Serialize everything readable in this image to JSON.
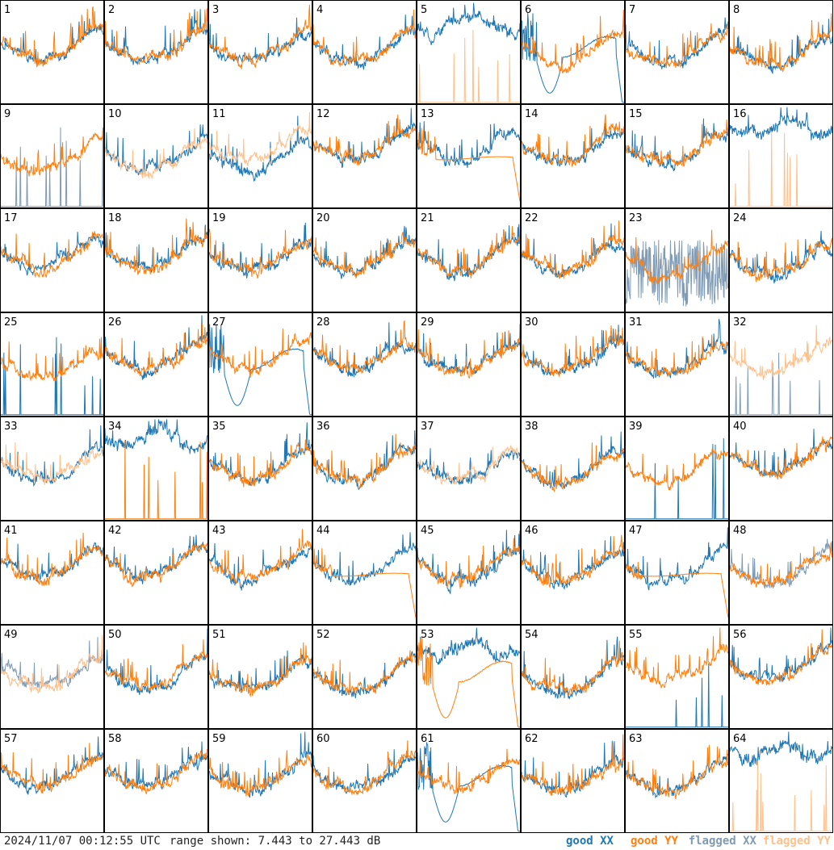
{
  "footer": {
    "timestamp": "2024/11/07 00:12:55 UTC",
    "range_text": "range shown: 7.443 to 27.443 dB",
    "legend": {
      "good_xx": "good XX",
      "good_yy": "good YY",
      "flagged_xx": "flagged XX",
      "flagged_yy": "flagged YY"
    }
  },
  "colors": {
    "good_xx": "#1f77b4",
    "good_yy": "#ff7f0e",
    "flagged_xx": "#7f9bb5",
    "flagged_yy": "#ffc08a",
    "border": "#000000"
  },
  "chart_data": {
    "type": "line",
    "grid": "8x8 small multiples",
    "ylim_db": [
      7.443,
      27.443
    ],
    "series_kinds": [
      "good XX",
      "good YY",
      "flagged XX",
      "flagged YY"
    ],
    "tiles": [
      {
        "id": "1",
        "xx": "good",
        "yy": "good",
        "xx_shape": "normal",
        "yy_shape": "normal"
      },
      {
        "id": "2",
        "xx": "good",
        "yy": "good",
        "xx_shape": "normal",
        "yy_shape": "normal"
      },
      {
        "id": "3",
        "xx": "good",
        "yy": "good",
        "xx_shape": "normal",
        "yy_shape": "normal"
      },
      {
        "id": "4",
        "xx": "good",
        "yy": "good",
        "xx_shape": "normal",
        "yy_shape": "normal"
      },
      {
        "id": "5",
        "xx": "good",
        "yy": "flagged",
        "xx_shape": "high",
        "yy_shape": "spiky"
      },
      {
        "id": "6",
        "xx": "good",
        "yy": "good",
        "xx_shape": "dip",
        "yy_shape": "normal"
      },
      {
        "id": "7",
        "xx": "good",
        "yy": "good",
        "xx_shape": "normal",
        "yy_shape": "normal"
      },
      {
        "id": "8",
        "xx": "good",
        "yy": "good",
        "xx_shape": "normal",
        "yy_shape": "normal"
      },
      {
        "id": "9",
        "xx": "flagged",
        "yy": "good",
        "xx_shape": "spiky",
        "yy_shape": "normal"
      },
      {
        "id": "10",
        "xx": "good",
        "yy": "flagged",
        "xx_shape": "normal",
        "yy_shape": "normal"
      },
      {
        "id": "11",
        "xx": "good",
        "yy": "flagged",
        "xx_shape": "normal",
        "yy_shape": "normal"
      },
      {
        "id": "12",
        "xx": "good",
        "yy": "good",
        "xx_shape": "normal",
        "yy_shape": "normal"
      },
      {
        "id": "13",
        "xx": "good",
        "yy": "good",
        "xx_shape": "normal",
        "yy_shape": "flat"
      },
      {
        "id": "14",
        "xx": "good",
        "yy": "good",
        "xx_shape": "normal",
        "yy_shape": "normal"
      },
      {
        "id": "15",
        "xx": "good",
        "yy": "good",
        "xx_shape": "normal",
        "yy_shape": "normal"
      },
      {
        "id": "16",
        "xx": "good",
        "yy": "flagged",
        "xx_shape": "high",
        "yy_shape": "spiky"
      },
      {
        "id": "17",
        "xx": "good",
        "yy": "good",
        "xx_shape": "normal",
        "yy_shape": "normal"
      },
      {
        "id": "18",
        "xx": "good",
        "yy": "good",
        "xx_shape": "normal",
        "yy_shape": "normal"
      },
      {
        "id": "19",
        "xx": "good",
        "yy": "good",
        "xx_shape": "normal",
        "yy_shape": "normal"
      },
      {
        "id": "20",
        "xx": "good",
        "yy": "good",
        "xx_shape": "normal",
        "yy_shape": "normal"
      },
      {
        "id": "21",
        "xx": "good",
        "yy": "good",
        "xx_shape": "normal",
        "yy_shape": "normal"
      },
      {
        "id": "22",
        "xx": "good",
        "yy": "good",
        "xx_shape": "normal",
        "yy_shape": "normal"
      },
      {
        "id": "23",
        "xx": "flagged",
        "yy": "good",
        "xx_shape": "noisy",
        "yy_shape": "normal"
      },
      {
        "id": "24",
        "xx": "good",
        "yy": "good",
        "xx_shape": "normal",
        "yy_shape": "normal"
      },
      {
        "id": "25",
        "xx": "good",
        "yy": "good",
        "xx_shape": "spiky",
        "yy_shape": "normal"
      },
      {
        "id": "26",
        "xx": "good",
        "yy": "good",
        "xx_shape": "normal",
        "yy_shape": "normal"
      },
      {
        "id": "27",
        "xx": "good",
        "yy": "good",
        "xx_shape": "dip",
        "yy_shape": "normal"
      },
      {
        "id": "28",
        "xx": "good",
        "yy": "good",
        "xx_shape": "normal",
        "yy_shape": "normal"
      },
      {
        "id": "29",
        "xx": "good",
        "yy": "good",
        "xx_shape": "normal",
        "yy_shape": "normal"
      },
      {
        "id": "30",
        "xx": "good",
        "yy": "good",
        "xx_shape": "normal",
        "yy_shape": "normal"
      },
      {
        "id": "31",
        "xx": "good",
        "yy": "good",
        "xx_shape": "normal",
        "yy_shape": "normal"
      },
      {
        "id": "32",
        "xx": "flagged",
        "yy": "flagged",
        "xx_shape": "spiky",
        "yy_shape": "normal"
      },
      {
        "id": "33",
        "xx": "good",
        "yy": "flagged",
        "xx_shape": "normal",
        "yy_shape": "normal"
      },
      {
        "id": "34",
        "xx": "good",
        "yy": "good",
        "xx_shape": "high",
        "yy_shape": "spiky"
      },
      {
        "id": "35",
        "xx": "good",
        "yy": "good",
        "xx_shape": "normal",
        "yy_shape": "normal"
      },
      {
        "id": "36",
        "xx": "good",
        "yy": "good",
        "xx_shape": "normal",
        "yy_shape": "normal"
      },
      {
        "id": "37",
        "xx": "good",
        "yy": "flagged",
        "xx_shape": "normal",
        "yy_shape": "normal"
      },
      {
        "id": "38",
        "xx": "good",
        "yy": "good",
        "xx_shape": "normal",
        "yy_shape": "normal"
      },
      {
        "id": "39",
        "xx": "good",
        "yy": "good",
        "xx_shape": "spiky",
        "yy_shape": "normal"
      },
      {
        "id": "40",
        "xx": "good",
        "yy": "good",
        "xx_shape": "normal",
        "yy_shape": "normal"
      },
      {
        "id": "41",
        "xx": "good",
        "yy": "good",
        "xx_shape": "normal",
        "yy_shape": "normal"
      },
      {
        "id": "42",
        "xx": "good",
        "yy": "good",
        "xx_shape": "normal",
        "yy_shape": "normal"
      },
      {
        "id": "43",
        "xx": "good",
        "yy": "good",
        "xx_shape": "normal",
        "yy_shape": "normal"
      },
      {
        "id": "44",
        "xx": "good",
        "yy": "good",
        "xx_shape": "normal",
        "yy_shape": "flat"
      },
      {
        "id": "45",
        "xx": "good",
        "yy": "good",
        "xx_shape": "normal",
        "yy_shape": "normal"
      },
      {
        "id": "46",
        "xx": "good",
        "yy": "good",
        "xx_shape": "normal",
        "yy_shape": "normal"
      },
      {
        "id": "47",
        "xx": "good",
        "yy": "good",
        "xx_shape": "normal",
        "yy_shape": "flat"
      },
      {
        "id": "48",
        "xx": "flagged",
        "yy": "good",
        "xx_shape": "normal",
        "yy_shape": "normal"
      },
      {
        "id": "49",
        "xx": "flagged",
        "yy": "flagged",
        "xx_shape": "normal",
        "yy_shape": "normal"
      },
      {
        "id": "50",
        "xx": "good",
        "yy": "good",
        "xx_shape": "normal",
        "yy_shape": "normal"
      },
      {
        "id": "51",
        "xx": "good",
        "yy": "good",
        "xx_shape": "normal",
        "yy_shape": "normal"
      },
      {
        "id": "52",
        "xx": "good",
        "yy": "good",
        "xx_shape": "normal",
        "yy_shape": "normal"
      },
      {
        "id": "53",
        "xx": "good",
        "yy": "good",
        "xx_shape": "high",
        "yy_shape": "dip"
      },
      {
        "id": "54",
        "xx": "good",
        "yy": "good",
        "xx_shape": "normal",
        "yy_shape": "normal"
      },
      {
        "id": "55",
        "xx": "good",
        "yy": "good",
        "xx_shape": "spiky",
        "yy_shape": "normal"
      },
      {
        "id": "56",
        "xx": "good",
        "yy": "good",
        "xx_shape": "normal",
        "yy_shape": "normal"
      },
      {
        "id": "57",
        "xx": "good",
        "yy": "good",
        "xx_shape": "normal",
        "yy_shape": "normal"
      },
      {
        "id": "58",
        "xx": "good",
        "yy": "good",
        "xx_shape": "normal",
        "yy_shape": "normal"
      },
      {
        "id": "59",
        "xx": "good",
        "yy": "good",
        "xx_shape": "normal",
        "yy_shape": "normal"
      },
      {
        "id": "60",
        "xx": "good",
        "yy": "good",
        "xx_shape": "normal",
        "yy_shape": "normal"
      },
      {
        "id": "61",
        "xx": "good",
        "yy": "good",
        "xx_shape": "dip",
        "yy_shape": "normal"
      },
      {
        "id": "62",
        "xx": "good",
        "yy": "good",
        "xx_shape": "normal",
        "yy_shape": "normal"
      },
      {
        "id": "63",
        "xx": "good",
        "yy": "good",
        "xx_shape": "normal",
        "yy_shape": "normal"
      },
      {
        "id": "64",
        "xx": "good",
        "yy": "flagged",
        "xx_shape": "high",
        "yy_shape": "spiky"
      }
    ]
  }
}
